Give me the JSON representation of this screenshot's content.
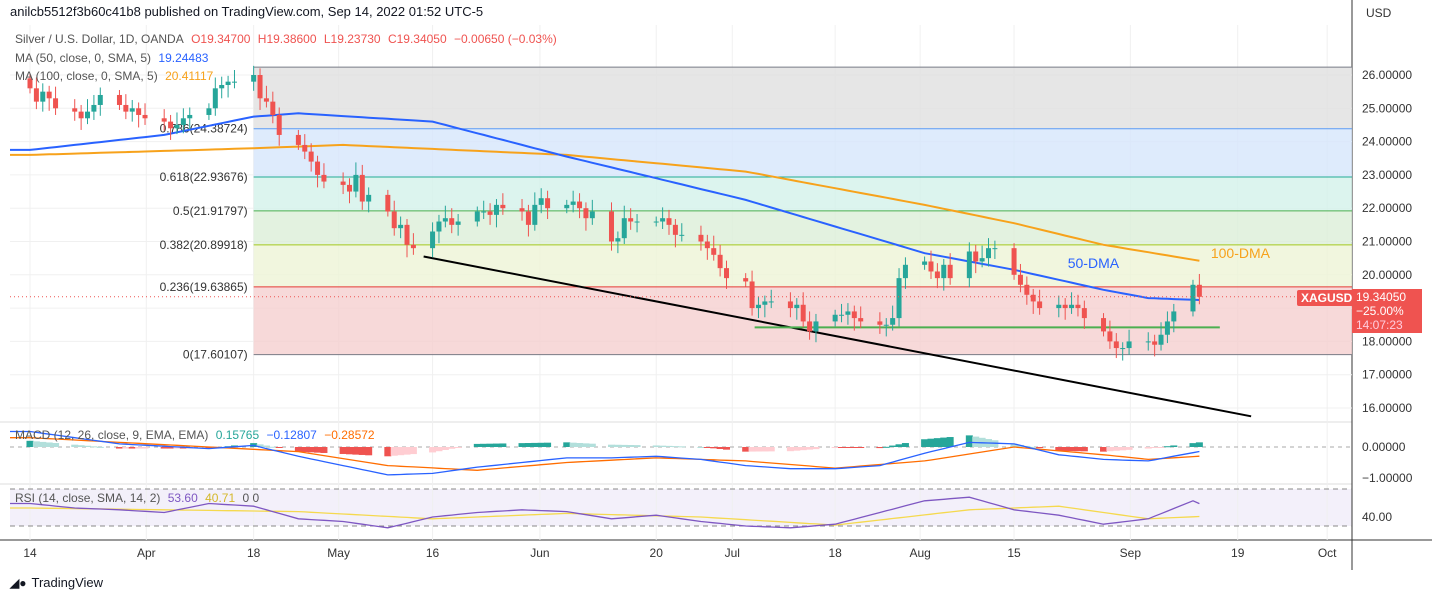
{
  "publish_line": "anilcb5512f3b60c41b8 published on TradingView.com, Sep 14, 2022 01:52 UTC-5",
  "legend": {
    "symbol": "Silver / U.S. Dollar, 1D, OANDA",
    "open": "O19.34700",
    "high": "H19.38600",
    "low": "L19.23730",
    "close": "C19.34050",
    "change": "−0.00650 (−0.03%)",
    "ma50_label": "MA (50, close, 0, SMA, 5)",
    "ma50_value": "19.24483",
    "ma100_label": "MA (100, close, 0, SMA, 5)",
    "ma100_value": "20.41117",
    "macd_label": "MACD (12, 26, close, 9, EMA, EMA)",
    "macd_hist": "0.15765",
    "macd_line": "−0.12807",
    "macd_signal": "−0.28572",
    "rsi_label": "RSI (14, close, SMA, 14, 2)",
    "rsi_value": "53.60",
    "rsi_sma": "40.71",
    "rsi_extra": "0 0"
  },
  "price_tag": {
    "symbol": "XAGUSD",
    "price": "19.34050",
    "pct": "−25.00%",
    "countdown": "14:07:23"
  },
  "currency": "USD",
  "footer": {
    "brand": "TradingView"
  },
  "colors": {
    "up": "#26a69a",
    "down": "#ef5350",
    "ma50": "#2962ff",
    "ma100": "#f7a21b",
    "macd": "#2962ff",
    "signal": "#ff6d00",
    "rsi": "#7e57c2",
    "rsi_sma": "#f5d94e"
  },
  "chart_data": {
    "type": "candlestick",
    "title": "Silver / U.S. Dollar, 1D, OANDA",
    "start_date": "2022-03-14",
    "closes": [
      25.6,
      25.2,
      25.5,
      25.3,
      25.0,
      24.9,
      24.7,
      24.9,
      25.1,
      25.4,
      25.1,
      24.9,
      25.0,
      24.8,
      24.7,
      24.6,
      24.4,
      24.5,
      24.7,
      24.8,
      25.0,
      25.6,
      25.7,
      25.8,
      25.8,
      26.0,
      25.3,
      25.2,
      24.8,
      24.2,
      23.9,
      23.7,
      23.4,
      23.0,
      22.8,
      22.7,
      22.5,
      23.0,
      22.2,
      22.4,
      21.9,
      21.4,
      21.5,
      20.9,
      20.8,
      21.3,
      21.6,
      21.7,
      21.5,
      21.6,
      21.9,
      21.9,
      21.8,
      22.1,
      22.0,
      21.9,
      21.5,
      22.1,
      22.3,
      22.0,
      22.1,
      22.2,
      22.0,
      21.7,
      21.9,
      21.0,
      21.1,
      21.7,
      21.6,
      21.6,
      21.6,
      21.7,
      21.5,
      21.2,
      21.2,
      21.0,
      20.8,
      20.6,
      20.2,
      19.9,
      19.8,
      19.0,
      19.1,
      19.2,
      19.2,
      19.0,
      19.1,
      18.6,
      18.3,
      18.6,
      18.8,
      18.8,
      18.9,
      18.7,
      18.6,
      18.5,
      18.5,
      18.7,
      19.9,
      20.3,
      20.4,
      20.1,
      19.9,
      20.3,
      19.9,
      20.7,
      20.4,
      20.5,
      20.8,
      20.8,
      20.0,
      19.7,
      19.4,
      19.2,
      19.0,
      19.1,
      19.0,
      19.1,
      19.0,
      18.7,
      18.3,
      18.0,
      17.8,
      17.8,
      18.0,
      18.0,
      17.9,
      18.2,
      18.6,
      18.9,
      19.7,
      19.3405
    ],
    "first_open": 25.9,
    "ma50_weekly": [
      [
        0,
        23.75
      ],
      [
        3,
        24.2
      ],
      [
        5,
        24.75
      ],
      [
        6,
        24.85
      ],
      [
        9,
        24.6
      ],
      [
        12,
        23.55
      ],
      [
        16,
        22.25
      ],
      [
        20,
        20.65
      ],
      [
        22,
        20.15
      ],
      [
        24,
        19.55
      ],
      [
        25,
        19.3
      ],
      [
        26.2,
        19.24
      ]
    ],
    "ma100_weekly": [
      [
        0,
        23.6
      ],
      [
        5,
        23.8
      ],
      [
        7,
        23.9
      ],
      [
        12,
        23.6
      ],
      [
        16,
        23.1
      ],
      [
        20,
        22.1
      ],
      [
        22,
        21.55
      ],
      [
        24,
        20.9
      ],
      [
        26.2,
        20.41
      ]
    ],
    "macd_weekly": [
      [
        0,
        0.5
      ],
      [
        1,
        0.3
      ],
      [
        2,
        0.1
      ],
      [
        4,
        -0.05
      ],
      [
        5,
        0.05
      ],
      [
        6,
        -0.3
      ],
      [
        7,
        -0.6
      ],
      [
        8,
        -0.9
      ],
      [
        9,
        -0.85
      ],
      [
        10,
        -0.65
      ],
      [
        11,
        -0.5
      ],
      [
        12,
        -0.35
      ],
      [
        13,
        -0.35
      ],
      [
        14,
        -0.3
      ],
      [
        15,
        -0.4
      ],
      [
        16,
        -0.6
      ],
      [
        17,
        -0.7
      ],
      [
        18,
        -0.7
      ],
      [
        19,
        -0.6
      ],
      [
        20,
        -0.2
      ],
      [
        21,
        0.15
      ],
      [
        22,
        0.1
      ],
      [
        23,
        -0.25
      ],
      [
        24,
        -0.4
      ],
      [
        25,
        -0.45
      ],
      [
        26.2,
        -0.13
      ]
    ],
    "signal_weekly": [
      [
        0,
        0.3
      ],
      [
        2,
        0.15
      ],
      [
        4,
        0.0
      ],
      [
        6,
        -0.15
      ],
      [
        8,
        -0.6
      ],
      [
        10,
        -0.75
      ],
      [
        12,
        -0.5
      ],
      [
        14,
        -0.35
      ],
      [
        16,
        -0.45
      ],
      [
        18,
        -0.68
      ],
      [
        20,
        -0.45
      ],
      [
        22,
        0.0
      ],
      [
        24,
        -0.25
      ],
      [
        25,
        -0.4
      ],
      [
        26.2,
        -0.29
      ]
    ],
    "rsi_weekly": [
      [
        0,
        55
      ],
      [
        1,
        50
      ],
      [
        2,
        48
      ],
      [
        3,
        45
      ],
      [
        4,
        55
      ],
      [
        5,
        52
      ],
      [
        6,
        38
      ],
      [
        7,
        35
      ],
      [
        8,
        28
      ],
      [
        9,
        40
      ],
      [
        10,
        45
      ],
      [
        11,
        48
      ],
      [
        12,
        46
      ],
      [
        13,
        38
      ],
      [
        14,
        42
      ],
      [
        15,
        35
      ],
      [
        16,
        30
      ],
      [
        17,
        28
      ],
      [
        18,
        32
      ],
      [
        19,
        45
      ],
      [
        20,
        58
      ],
      [
        21,
        62
      ],
      [
        22,
        48
      ],
      [
        23,
        42
      ],
      [
        24,
        32
      ],
      [
        25,
        38
      ],
      [
        26,
        58
      ],
      [
        26.2,
        53.6
      ]
    ],
    "rsi_sma_weekly": [
      [
        0,
        50
      ],
      [
        3,
        48
      ],
      [
        6,
        46
      ],
      [
        9,
        38
      ],
      [
        12,
        44
      ],
      [
        15,
        40
      ],
      [
        18,
        31
      ],
      [
        21,
        48
      ],
      [
        23,
        52
      ],
      [
        25,
        38
      ],
      [
        26.2,
        40.71
      ]
    ],
    "fib_levels": [
      {
        "ratio": "1",
        "price": 26.23487,
        "label": "",
        "color": "#787b86"
      },
      {
        "ratio": "0.786",
        "price": 24.38724,
        "label": "0.786(24.38724)",
        "color": "#5b9cf6"
      },
      {
        "ratio": "0.618",
        "price": 22.93676,
        "label": "0.618(22.93676)",
        "color": "#22ab94"
      },
      {
        "ratio": "0.5",
        "price": 21.91797,
        "label": "0.5(21.91797)",
        "color": "#4caf50"
      },
      {
        "ratio": "0.382",
        "price": 20.89918,
        "label": "0.382(20.89918)",
        "color": "#a5c81e"
      },
      {
        "ratio": "0.236",
        "price": 19.63865,
        "label": "0.236(19.63865)",
        "color": "#e53935"
      },
      {
        "ratio": "0",
        "price": 17.60107,
        "label": "0(17.60107)",
        "color": "#787b86"
      }
    ],
    "fib_fill": [
      "#e0e0e0",
      "#d6e6fb",
      "#d3f1ea",
      "#dcefd8",
      "#eef4d6",
      "#f5d0d0"
    ],
    "fib_start_week": 5,
    "trendline": {
      "from": [
        8.8,
        20.55
      ],
      "to": [
        27.3,
        15.75
      ],
      "color": "#000000"
    },
    "support_line": {
      "price": 18.42,
      "from_week": 16.2,
      "to_week": 26.6,
      "color": "#4caf50"
    },
    "annotations": [
      {
        "text": "50-DMA",
        "week": 23.2,
        "price": 20.2,
        "color": "#2962ff"
      },
      {
        "text": "100-DMA",
        "week": 26.4,
        "price": 20.5,
        "color": "#f7a21b"
      }
    ],
    "price_ticks": [
      "26.00000",
      "25.00000",
      "24.00000",
      "23.00000",
      "22.00000",
      "21.00000",
      "20.00000",
      "18.00000",
      "17.00000",
      "16.00000"
    ],
    "macd_ticks": [
      "0.00000",
      "−1.00000"
    ],
    "rsi_ticks": [
      "40.00"
    ],
    "time_ticks": [
      {
        "label": "14",
        "week": 0
      },
      {
        "label": "Apr",
        "week": 2.6
      },
      {
        "label": "18",
        "week": 5
      },
      {
        "label": "May",
        "week": 6.9
      },
      {
        "label": "16",
        "week": 9
      },
      {
        "label": "Jun",
        "week": 11.4
      },
      {
        "label": "20",
        "week": 14
      },
      {
        "label": "Jul",
        "week": 15.7
      },
      {
        "label": "18",
        "week": 18
      },
      {
        "label": "Aug",
        "week": 19.9
      },
      {
        "label": "15",
        "week": 22
      },
      {
        "label": "Sep",
        "week": 24.6
      },
      {
        "label": "19",
        "week": 27
      },
      {
        "label": "Oct",
        "week": 29
      }
    ]
  }
}
